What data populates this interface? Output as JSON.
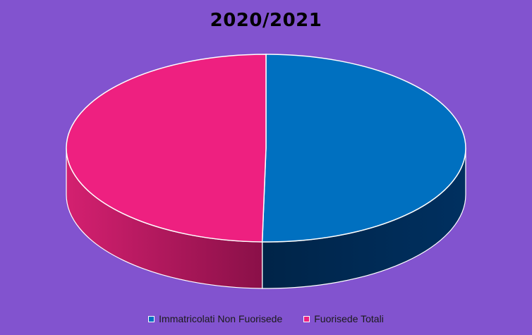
{
  "chart_data": {
    "type": "pie",
    "title": "2020/2021",
    "style": "3d",
    "legend_position": "bottom",
    "series": [
      {
        "name": "Immatricolati Non Fuorisede",
        "value": 50.3,
        "color": "#0070C0",
        "side_color": "#002A50"
      },
      {
        "name": "Fuorisede Totali",
        "value": 49.7,
        "color": "#EE2080",
        "side_color": "#B01860"
      }
    ]
  }
}
